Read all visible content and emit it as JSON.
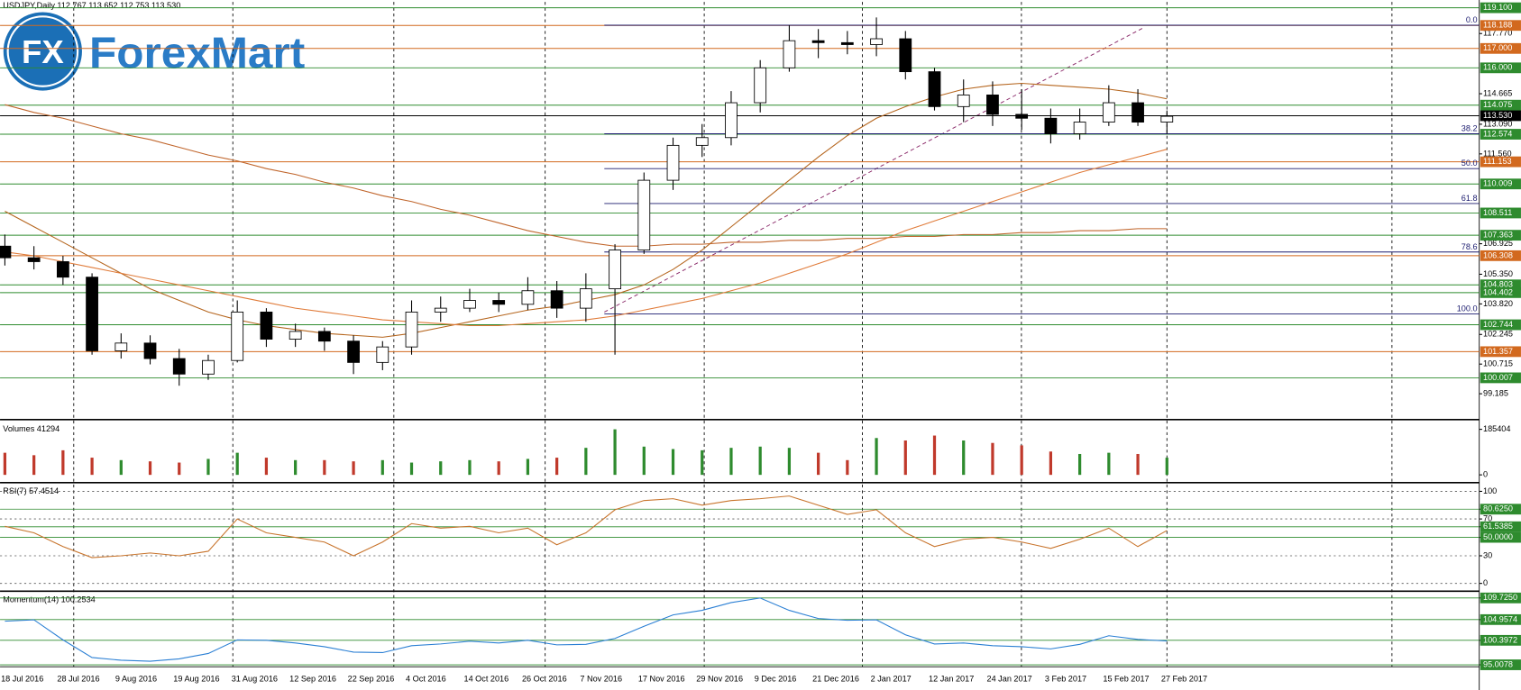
{
  "logo": {
    "badge": "FX",
    "name": "ForexMart"
  },
  "chart_data": [
    {
      "type": "candlestick",
      "title": "USDJPY,Daily  112.767 113.652 112.753 113.530",
      "categories": [
        "18 Jul 2016",
        null,
        "28 Jul 2016",
        null,
        "9 Aug 2016",
        null,
        "19 Aug 2016",
        null,
        "31 Aug 2016",
        null,
        "12 Sep 2016",
        null,
        "22 Sep 2016",
        null,
        "4 Oct 2016",
        null,
        "14 Oct 2016",
        null,
        "26 Oct 2016",
        null,
        "7 Nov 2016",
        null,
        "17 Nov 2016",
        null,
        "29 Nov 2016",
        null,
        "9 Dec 2016",
        null,
        "21 Dec 2016",
        null,
        "2 Jan 2017",
        null,
        "12 Jan 2017",
        null,
        "24 Jan 2017",
        null,
        "3 Feb 2017",
        null,
        "15 Feb 2017",
        null,
        "27 Feb 2017"
      ],
      "open": [
        106.8,
        106.2,
        106.0,
        105.2,
        101.4,
        101.8,
        101.0,
        100.2,
        100.9,
        103.4,
        102.0,
        102.4,
        101.9,
        100.8,
        101.6,
        103.4,
        103.6,
        104.0,
        103.8,
        104.5,
        103.6,
        104.6,
        106.6,
        110.2,
        112.0,
        112.4,
        114.2,
        116.0,
        117.4,
        117.3,
        117.2,
        117.5,
        115.8,
        114.0,
        114.6,
        113.6,
        113.4,
        112.6,
        113.2,
        114.2,
        113.2
      ],
      "high": [
        107.4,
        106.8,
        106.3,
        105.4,
        102.3,
        102.2,
        101.5,
        101.2,
        104.0,
        103.6,
        102.8,
        102.6,
        102.2,
        101.9,
        104.0,
        104.2,
        104.6,
        104.4,
        105.2,
        105.0,
        105.4,
        106.9,
        110.6,
        112.4,
        113.1,
        114.8,
        116.4,
        118.2,
        118.0,
        117.9,
        118.6,
        117.9,
        116.0,
        115.4,
        115.3,
        114.9,
        113.9,
        113.9,
        115.1,
        114.9,
        113.8
      ],
      "low": [
        105.8,
        105.6,
        104.8,
        101.2,
        101.0,
        100.7,
        99.6,
        99.9,
        100.8,
        101.6,
        101.6,
        101.4,
        100.2,
        100.4,
        101.2,
        102.9,
        103.4,
        103.4,
        103.5,
        103.1,
        102.9,
        101.2,
        106.4,
        109.7,
        111.4,
        112.0,
        113.7,
        115.8,
        116.5,
        116.7,
        116.6,
        115.4,
        113.8,
        113.2,
        113.0,
        112.8,
        112.1,
        112.3,
        113.0,
        113.0,
        112.6
      ],
      "close": [
        106.2,
        106.0,
        105.2,
        101.4,
        101.8,
        101.0,
        100.2,
        100.9,
        103.4,
        102.0,
        102.4,
        101.9,
        100.8,
        101.6,
        103.4,
        103.6,
        104.0,
        103.8,
        104.5,
        103.6,
        104.6,
        106.6,
        110.2,
        112.0,
        112.4,
        114.2,
        116.0,
        117.4,
        117.3,
        117.2,
        117.5,
        115.8,
        114.0,
        114.6,
        113.6,
        113.4,
        112.6,
        113.2,
        114.2,
        113.2,
        113.5
      ],
      "up_color": "#ffffff",
      "down_color": "#000000",
      "ma": [
        {
          "color": "#c0652b",
          "values": [
            114.1,
            113.7,
            113.4,
            113.0,
            112.6,
            112.3,
            111.9,
            111.5,
            111.2,
            110.8,
            110.5,
            110.1,
            109.8,
            109.4,
            109.1,
            108.7,
            108.4,
            108.0,
            107.6,
            107.3,
            107.0,
            106.8,
            106.8,
            106.9,
            106.9,
            107.0,
            107.0,
            107.1,
            107.1,
            107.2,
            107.2,
            107.3,
            107.3,
            107.4,
            107.4,
            107.5,
            107.5,
            107.6,
            107.6,
            107.7,
            107.7
          ]
        },
        {
          "color": "#b5651d",
          "values": [
            108.6,
            107.8,
            107.0,
            106.2,
            105.4,
            104.6,
            104.0,
            103.4,
            103.0,
            102.7,
            102.5,
            102.3,
            102.2,
            102.1,
            102.3,
            102.6,
            102.9,
            103.2,
            103.5,
            103.7,
            104.0,
            104.3,
            104.8,
            105.6,
            106.6,
            107.8,
            109.0,
            110.2,
            111.4,
            112.5,
            113.4,
            114.0,
            114.5,
            114.9,
            115.1,
            115.2,
            115.1,
            115.0,
            114.9,
            114.7,
            114.4
          ]
        },
        {
          "color": "#e07b39",
          "values": [
            106.5,
            106.3,
            106.0,
            105.7,
            105.4,
            105.1,
            104.8,
            104.5,
            104.2,
            103.9,
            103.6,
            103.4,
            103.2,
            103.0,
            102.9,
            102.8,
            102.7,
            102.7,
            102.8,
            102.9,
            103.0,
            103.2,
            103.5,
            103.8,
            104.1,
            104.5,
            104.9,
            105.4,
            105.9,
            106.4,
            107.0,
            107.6,
            108.1,
            108.6,
            109.1,
            109.6,
            110.1,
            110.6,
            111.0,
            111.4,
            111.8
          ]
        }
      ],
      "levels": [
        {
          "value": 119.1,
          "label": "119.100",
          "color": "#2e8b2e"
        },
        {
          "value": 118.188,
          "label": "118.188",
          "color": "#d2691e"
        },
        {
          "value": 117.0,
          "label": "117.000",
          "color": "#d2691e"
        },
        {
          "value": 116.0,
          "label": "116.000",
          "color": "#2e8b2e"
        },
        {
          "value": 114.075,
          "label": "114.075",
          "color": "#2e8b2e"
        },
        {
          "value": 113.53,
          "label": "113.530",
          "color": "#000000"
        },
        {
          "value": 112.574,
          "label": "112.574",
          "color": "#2e8b2e"
        },
        {
          "value": 111.153,
          "label": "111.153",
          "color": "#d2691e"
        },
        {
          "value": 110.009,
          "label": "110.009",
          "color": "#2e8b2e"
        },
        {
          "value": 108.511,
          "label": "108.511",
          "color": "#2e8b2e"
        },
        {
          "value": 107.363,
          "label": "107.363",
          "color": "#2e8b2e"
        },
        {
          "value": 106.308,
          "label": "106.308",
          "color": "#d2691e"
        },
        {
          "value": 104.803,
          "label": "104.803",
          "color": "#2e8b2e"
        },
        {
          "value": 104.402,
          "label": "104.402",
          "color": "#2e8b2e"
        },
        {
          "value": 102.744,
          "label": "102.744",
          "color": "#2e8b2e"
        },
        {
          "value": 101.357,
          "label": "101.357",
          "color": "#d2691e"
        },
        {
          "value": 100.007,
          "label": "100.007",
          "color": "#2e8b2e"
        }
      ],
      "fib": {
        "color": "#1a1a6e",
        "levels": [
          {
            "value": 118.2,
            "label": "0.0"
          },
          {
            "value": 112.6,
            "label": "38.2"
          },
          {
            "value": 110.8,
            "label": "50.0"
          },
          {
            "value": 109.0,
            "label": "61.8"
          },
          {
            "value": 106.5,
            "label": "78.6"
          },
          {
            "value": 103.3,
            "label": "100.0"
          }
        ]
      },
      "ylim": [
        97.9,
        119.4
      ],
      "yticks": [
        {
          "value": 117.77,
          "label": "117.770"
        },
        114.665,
        {
          "value": 113.09,
          "label": "113.090"
        },
        {
          "value": 111.56,
          "label": "111.560"
        },
        106.925,
        {
          "value": 105.35,
          "label": "105.350"
        },
        {
          "value": 103.82,
          "label": "103.820"
        },
        102.245,
        100.715,
        99.185
      ]
    },
    {
      "type": "bar",
      "title": "Volumes 41294",
      "values": [
        90000,
        80000,
        100000,
        70000,
        60000,
        55000,
        50000,
        65000,
        90000,
        70000,
        60000,
        60000,
        55000,
        60000,
        50000,
        55000,
        60000,
        55000,
        65000,
        70000,
        110000,
        185404,
        115000,
        105000,
        100000,
        110000,
        115000,
        110000,
        90000,
        60000,
        150000,
        140000,
        160000,
        140000,
        130000,
        120000,
        95000,
        85000,
        90000,
        85000,
        70000
      ],
      "up_color": "#2e8b2e",
      "down_color": "#c0392b",
      "ylim": [
        0,
        217000
      ],
      "yticks": [
        185404,
        0
      ]
    },
    {
      "type": "line",
      "title": "RSI(7) 57.4514",
      "color": "#c8742c",
      "values": [
        62,
        55,
        40,
        28,
        30,
        33,
        30,
        35,
        70,
        55,
        50,
        45,
        30,
        45,
        65,
        60,
        62,
        55,
        60,
        42,
        55,
        80,
        90,
        92,
        85,
        90,
        92,
        95,
        85,
        75,
        80,
        55,
        40,
        48,
        50,
        45,
        38,
        48,
        60,
        40,
        57.4514
      ],
      "ylim": [
        0,
        100
      ],
      "yticks": [
        100,
        {
          "value": 80.625,
          "label": "80.6250"
        },
        70,
        {
          "value": 61.5385,
          "label": "61.5385"
        },
        {
          "value": 50,
          "label": "50.0000"
        },
        30,
        0
      ],
      "grid": true
    },
    {
      "type": "line",
      "title": "Momentum(14) 100.2534",
      "color": "#2a7fd4",
      "values": [
        104.6,
        104.9,
        100.5,
        96.6,
        96.0,
        95.8,
        96.3,
        97.5,
        100.5,
        100.4,
        99.8,
        99.0,
        97.8,
        97.7,
        99.2,
        99.6,
        100.2,
        99.8,
        100.4,
        99.4,
        99.5,
        100.8,
        103.5,
        106.0,
        107.0,
        108.7,
        109.7,
        107.0,
        105.2,
        104.8,
        104.9,
        101.6,
        99.6,
        99.8,
        99.2,
        99.0,
        98.5,
        99.5,
        101.4,
        100.6,
        100.2534
      ],
      "ylim": [
        95.0078,
        109.725
      ],
      "yticks": [
        {
          "value": 109.725,
          "label": "109.7250"
        },
        {
          "value": 104.9574,
          "label": "104.9574"
        },
        {
          "value": 100.3972,
          "label": "100.3972"
        },
        {
          "value": 95.0078,
          "label": "95.0078"
        }
      ],
      "grid": true
    }
  ]
}
